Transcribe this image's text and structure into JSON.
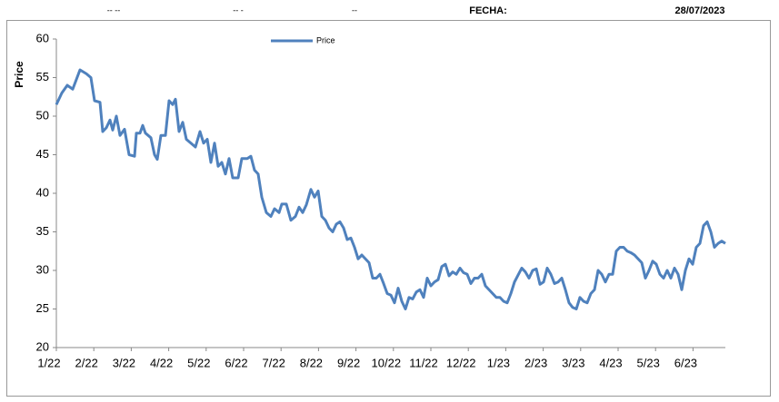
{
  "header": {
    "field_1": "-- --",
    "field_2": "-- -",
    "field_3": "--",
    "date_label": "FECHA:",
    "date_value": "28/07/2023"
  },
  "chart_data": {
    "type": "line",
    "y_label": "Price",
    "xlim": [
      0,
      184
    ],
    "xticks": [
      {
        "value": 0,
        "label": "1/22"
      },
      {
        "value": 10.3,
        "label": "2/22"
      },
      {
        "value": 20.6,
        "label": "3/22"
      },
      {
        "value": 30.9,
        "label": "4/22"
      },
      {
        "value": 41.2,
        "label": "5/22"
      },
      {
        "value": 51.5,
        "label": "6/22"
      },
      {
        "value": 61.8,
        "label": "7/22"
      },
      {
        "value": 72.1,
        "label": "8/22"
      },
      {
        "value": 82.4,
        "label": "9/22"
      },
      {
        "value": 92.7,
        "label": "10/22"
      },
      {
        "value": 103,
        "label": "11/22"
      },
      {
        "value": 113.3,
        "label": "12/22"
      },
      {
        "value": 123.6,
        "label": "1/23"
      },
      {
        "value": 133.9,
        "label": "2/23"
      },
      {
        "value": 144.2,
        "label": "3/23"
      },
      {
        "value": 154.5,
        "label": "4/23"
      },
      {
        "value": 164.8,
        "label": "5/23"
      },
      {
        "value": 175.1,
        "label": "6/23"
      }
    ],
    "ylim": [
      20,
      60
    ],
    "yticks": [
      20,
      25,
      30,
      35,
      40,
      45,
      50,
      55,
      60
    ],
    "grid": false,
    "legend": "top",
    "x": [
      0,
      1.5,
      3,
      4.5,
      6.5,
      8.25,
      9.5,
      10.5,
      12,
      12.75,
      13.75,
      14.75,
      15.5,
      16.5,
      17.5,
      18.75,
      20,
      21.5,
      22,
      23,
      23.75,
      24.5,
      26,
      27,
      27.75,
      28.75,
      30,
      31,
      32,
      32.75,
      33.75,
      34.75,
      35.75,
      37,
      38.25,
      39.5,
      40.5,
      41.5,
      42.5,
      43.5,
      44.5,
      45.5,
      46.5,
      47.5,
      48.5,
      50,
      51,
      52.5,
      53.5,
      54.5,
      55.5,
      56.5,
      57.75,
      59,
      60,
      61.25,
      62,
      63.25,
      64.5,
      65.75,
      66.75,
      67.75,
      68.75,
      70,
      71,
      72,
      73,
      74,
      75,
      76,
      77,
      78,
      79,
      80,
      81,
      82,
      83,
      84,
      85,
      86,
      87,
      88,
      89,
      90,
      91,
      92,
      93,
      94,
      95,
      96,
      97,
      98,
      99,
      100,
      101,
      102,
      103,
      104,
      105,
      106,
      107,
      108,
      109,
      110,
      111,
      112,
      113,
      114,
      115,
      116,
      117,
      118,
      119,
      120,
      121,
      122,
      123,
      124,
      125,
      126,
      127,
      128,
      129,
      130,
      131,
      132,
      133,
      134,
      135,
      136,
      137,
      138,
      139,
      140,
      141,
      142,
      143,
      144,
      145,
      146,
      147,
      148,
      149,
      150,
      151,
      152,
      153,
      154,
      155,
      156,
      157,
      158,
      159,
      160,
      161,
      162,
      163,
      164,
      165,
      166,
      167,
      168,
      169,
      170,
      171,
      172,
      173,
      174,
      175,
      176,
      177,
      178,
      179,
      180,
      181,
      182,
      183,
      184
    ],
    "series": [
      {
        "name": "Price",
        "color": "#4f81bd",
        "values": [
          51.5,
          53,
          54,
          53.5,
          56,
          55.5,
          55,
          52,
          51.8,
          48,
          48.5,
          49.5,
          48.2,
          50,
          47.5,
          48.3,
          45,
          44.8,
          47.8,
          47.8,
          48.8,
          47.8,
          47.2,
          45,
          44.4,
          47.5,
          47.5,
          52,
          51.5,
          52.2,
          48,
          49.2,
          47,
          46.5,
          46,
          48,
          46.5,
          47,
          44,
          46.5,
          43.5,
          44,
          42.5,
          44.5,
          42,
          42,
          44.5,
          44.5,
          44.8,
          43,
          42.5,
          39.5,
          37.5,
          37,
          38,
          37.5,
          38.6,
          38.6,
          36.5,
          37,
          38.2,
          37.5,
          38.5,
          40.5,
          39.5,
          40.3,
          37,
          36.5,
          35.5,
          35,
          36,
          36.3,
          35.5,
          34,
          34.2,
          33,
          31.5,
          32,
          31.5,
          31,
          29,
          29,
          29.5,
          28.3,
          27,
          26.8,
          25.8,
          27.7,
          26,
          25,
          26.5,
          26.3,
          27.2,
          27.5,
          26.5,
          29,
          28,
          28.5,
          28.8,
          30.5,
          30.8,
          29.3,
          29.8,
          29.5,
          30.3,
          29.7,
          29.5,
          28.3,
          29,
          29,
          29.5,
          28,
          27.5,
          27,
          26.5,
          26.5,
          26,
          25.8,
          27,
          28.5,
          29.4,
          30.3,
          29.8,
          29,
          30,
          30.2,
          28.2,
          28.5,
          30.3,
          29.5,
          28.3,
          28.5,
          29,
          27.5,
          25.8,
          25.2,
          25,
          26.5,
          26,
          25.8,
          27,
          27.5,
          30,
          29.5,
          28.5,
          29.5,
          29.5,
          32.5,
          33,
          33,
          32.5,
          32.3,
          32,
          31.5,
          31,
          29,
          30,
          31.2,
          30.8,
          29.5,
          29,
          30,
          29,
          30.3,
          29.5,
          27.5,
          30,
          31.5,
          30.8,
          33,
          33.5,
          35.8,
          36.3,
          35,
          33,
          33.5,
          33.8,
          33.5
        ]
      }
    ]
  }
}
